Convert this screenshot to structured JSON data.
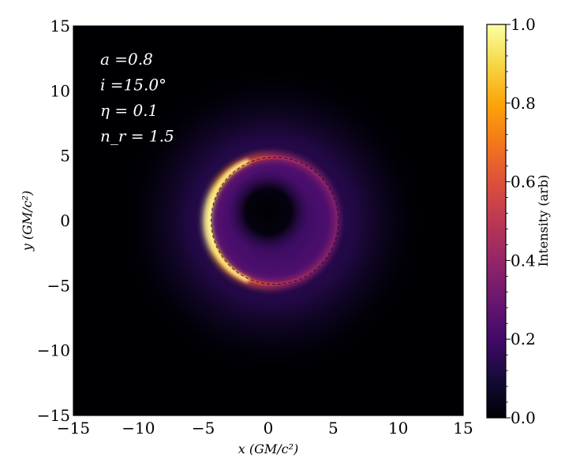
{
  "chart_data": {
    "type": "heatmap",
    "title": "",
    "xlabel": "x (GM/c²)",
    "ylabel": "y (GM/c²)",
    "xlim": [
      -15,
      15
    ],
    "ylim": [
      -15,
      15
    ],
    "x_ticks": [
      "−15",
      "−10",
      "−5",
      "0",
      "5",
      "10",
      "15"
    ],
    "y_ticks": [
      "15",
      "10",
      "5",
      "0",
      "−5",
      "−10",
      "−15"
    ],
    "colormap": "inferno",
    "colorbar": {
      "label": "Intensity (arb)",
      "range": [
        0.0,
        1.0
      ],
      "ticks": [
        "1.0",
        "0.8",
        "0.6",
        "0.4",
        "0.2",
        "0.0"
      ]
    },
    "annotations": [
      "a =0.8",
      "i =15.0°",
      "η = 0.1",
      "n_r = 1.5"
    ],
    "ring": {
      "center": [
        0.5,
        0.0
      ],
      "radius": 4.9,
      "brightest_side": "left",
      "shadow_center": [
        0.0,
        0.7
      ],
      "shadow_radius": 2.2,
      "dashed_overlay": "critical curve"
    }
  }
}
